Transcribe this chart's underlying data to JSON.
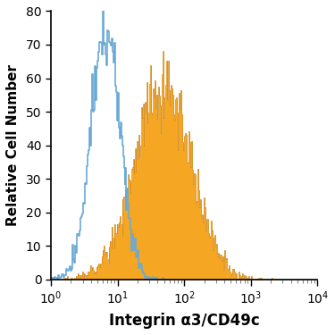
{
  "xlabel": "Integrin α3/CD49c",
  "ylabel": "Relative Cell Number",
  "ylim": [
    0,
    80
  ],
  "yticks": [
    0,
    10,
    20,
    30,
    40,
    50,
    60,
    70,
    80
  ],
  "blue_color": "#6aaad4",
  "orange_color": "#f5a623",
  "orange_edge_color": "#cc7a00",
  "background_color": "#ffffff",
  "blue_log_mean": 0.82,
  "blue_log_std": 0.22,
  "blue_peak_y": 80,
  "orange_log_mean": 1.68,
  "orange_log_std": 0.42,
  "orange_peak_y": 68,
  "n_bins": 300,
  "xmin": 1.0,
  "xmax": 10000.0
}
